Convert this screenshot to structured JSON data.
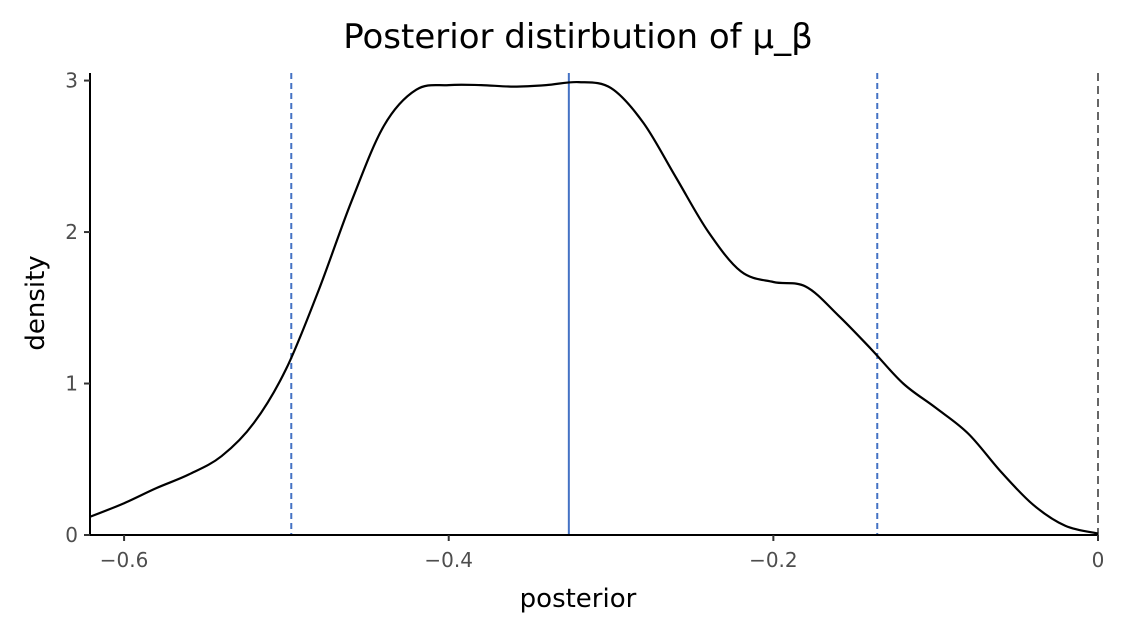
{
  "chart_data": {
    "type": "line",
    "title": "Posterior distirbution of μ_β",
    "xlabel": "posterior",
    "ylabel": "density",
    "xlim": [
      -0.621,
      0.0
    ],
    "ylim": [
      0,
      3.05
    ],
    "x_ticks": [
      {
        "value": -0.6,
        "label": "−0.6"
      },
      {
        "value": -0.4,
        "label": "−0.4"
      },
      {
        "value": -0.2,
        "label": "−0.2"
      },
      {
        "value": 0.0,
        "label": "0"
      }
    ],
    "y_ticks": [
      {
        "value": 0,
        "label": "0"
      },
      {
        "value": 1,
        "label": "1"
      },
      {
        "value": 2,
        "label": "2"
      },
      {
        "value": 3,
        "label": "3"
      }
    ],
    "grid": false,
    "series": [
      {
        "color": "#000000",
        "points": [
          [
            -0.621,
            0.12
          ],
          [
            -0.6,
            0.21
          ],
          [
            -0.58,
            0.31
          ],
          [
            -0.56,
            0.4
          ],
          [
            -0.54,
            0.52
          ],
          [
            -0.52,
            0.74
          ],
          [
            -0.5,
            1.1
          ],
          [
            -0.48,
            1.62
          ],
          [
            -0.46,
            2.2
          ],
          [
            -0.44,
            2.7
          ],
          [
            -0.42,
            2.94
          ],
          [
            -0.4,
            2.97
          ],
          [
            -0.38,
            2.97
          ],
          [
            -0.36,
            2.96
          ],
          [
            -0.34,
            2.97
          ],
          [
            -0.32,
            2.99
          ],
          [
            -0.3,
            2.95
          ],
          [
            -0.28,
            2.72
          ],
          [
            -0.26,
            2.36
          ],
          [
            -0.24,
            2.0
          ],
          [
            -0.22,
            1.74
          ],
          [
            -0.2,
            1.67
          ],
          [
            -0.18,
            1.64
          ],
          [
            -0.16,
            1.45
          ],
          [
            -0.14,
            1.23
          ],
          [
            -0.12,
            1.0
          ],
          [
            -0.1,
            0.84
          ],
          [
            -0.08,
            0.67
          ],
          [
            -0.06,
            0.42
          ],
          [
            -0.04,
            0.2
          ],
          [
            -0.02,
            0.06
          ],
          [
            0.0,
            0.01
          ]
        ]
      }
    ],
    "vlines": [
      {
        "x": -0.497,
        "color": "#4472c4",
        "style": "dashed"
      },
      {
        "x": -0.326,
        "color": "#4472c4",
        "style": "solid"
      },
      {
        "x": -0.136,
        "color": "#4472c4",
        "style": "dashed"
      },
      {
        "x": 0.0,
        "color": "#666666",
        "style": "dashed"
      }
    ]
  }
}
